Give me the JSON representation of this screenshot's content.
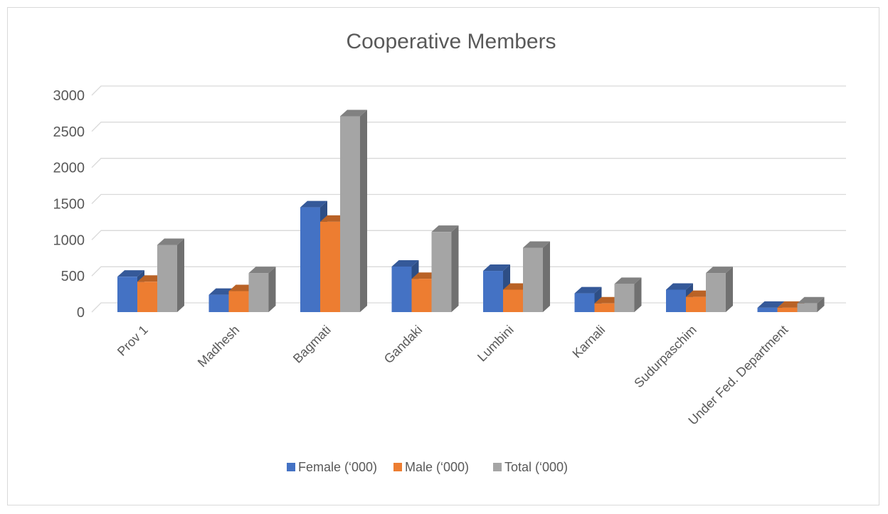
{
  "chart_data": {
    "type": "bar",
    "title": "Cooperative Members",
    "xlabel": "",
    "ylabel": "",
    "ylim": [
      0,
      3000
    ],
    "y_ticks": [
      "0",
      "500",
      "1000",
      "1500",
      "2000",
      "2500",
      "3000"
    ],
    "grid": true,
    "legend_position": "bottom",
    "categories": [
      "Prov 1",
      "Madhesh",
      "Bagmati",
      "Gandaki",
      "Lumbini",
      "Karnali",
      "Sudurpaschim",
      "Under Fed. Department"
    ],
    "series": [
      {
        "name": "Female (‘000)",
        "color": "#4472c4",
        "values": [
          490,
          240,
          1450,
          630,
          570,
          260,
          310,
          60
        ]
      },
      {
        "name": "Male (‘000)",
        "color": "#ed7d31",
        "values": [
          420,
          290,
          1250,
          460,
          310,
          120,
          210,
          60
        ]
      },
      {
        "name": "Total (‘000)",
        "color": "#a5a5a5",
        "values": [
          930,
          540,
          2710,
          1110,
          890,
          390,
          540,
          120
        ]
      }
    ]
  }
}
